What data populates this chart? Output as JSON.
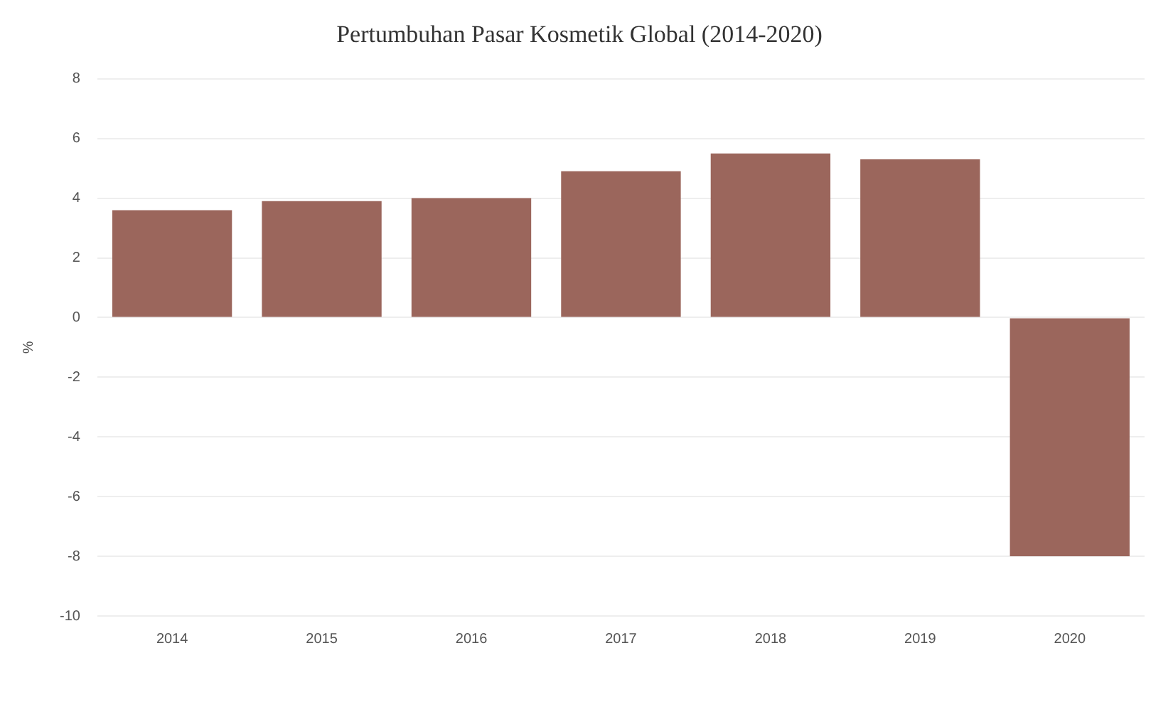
{
  "chart_data": {
    "type": "bar",
    "title": "Pertumbuhan Pasar Kosmetik Global (2014-2020)",
    "ylabel": "%",
    "categories": [
      "2014",
      "2015",
      "2016",
      "2017",
      "2018",
      "2019",
      "2020"
    ],
    "values": [
      3.6,
      3.9,
      4.0,
      4.9,
      5.5,
      5.3,
      -8.0
    ],
    "color": "#9b665c",
    "ylim": [
      -10,
      8
    ],
    "yticks": [
      -10,
      -8,
      -6,
      -4,
      -2,
      0,
      2,
      4,
      6,
      8
    ],
    "grid": "y",
    "legend": false
  }
}
